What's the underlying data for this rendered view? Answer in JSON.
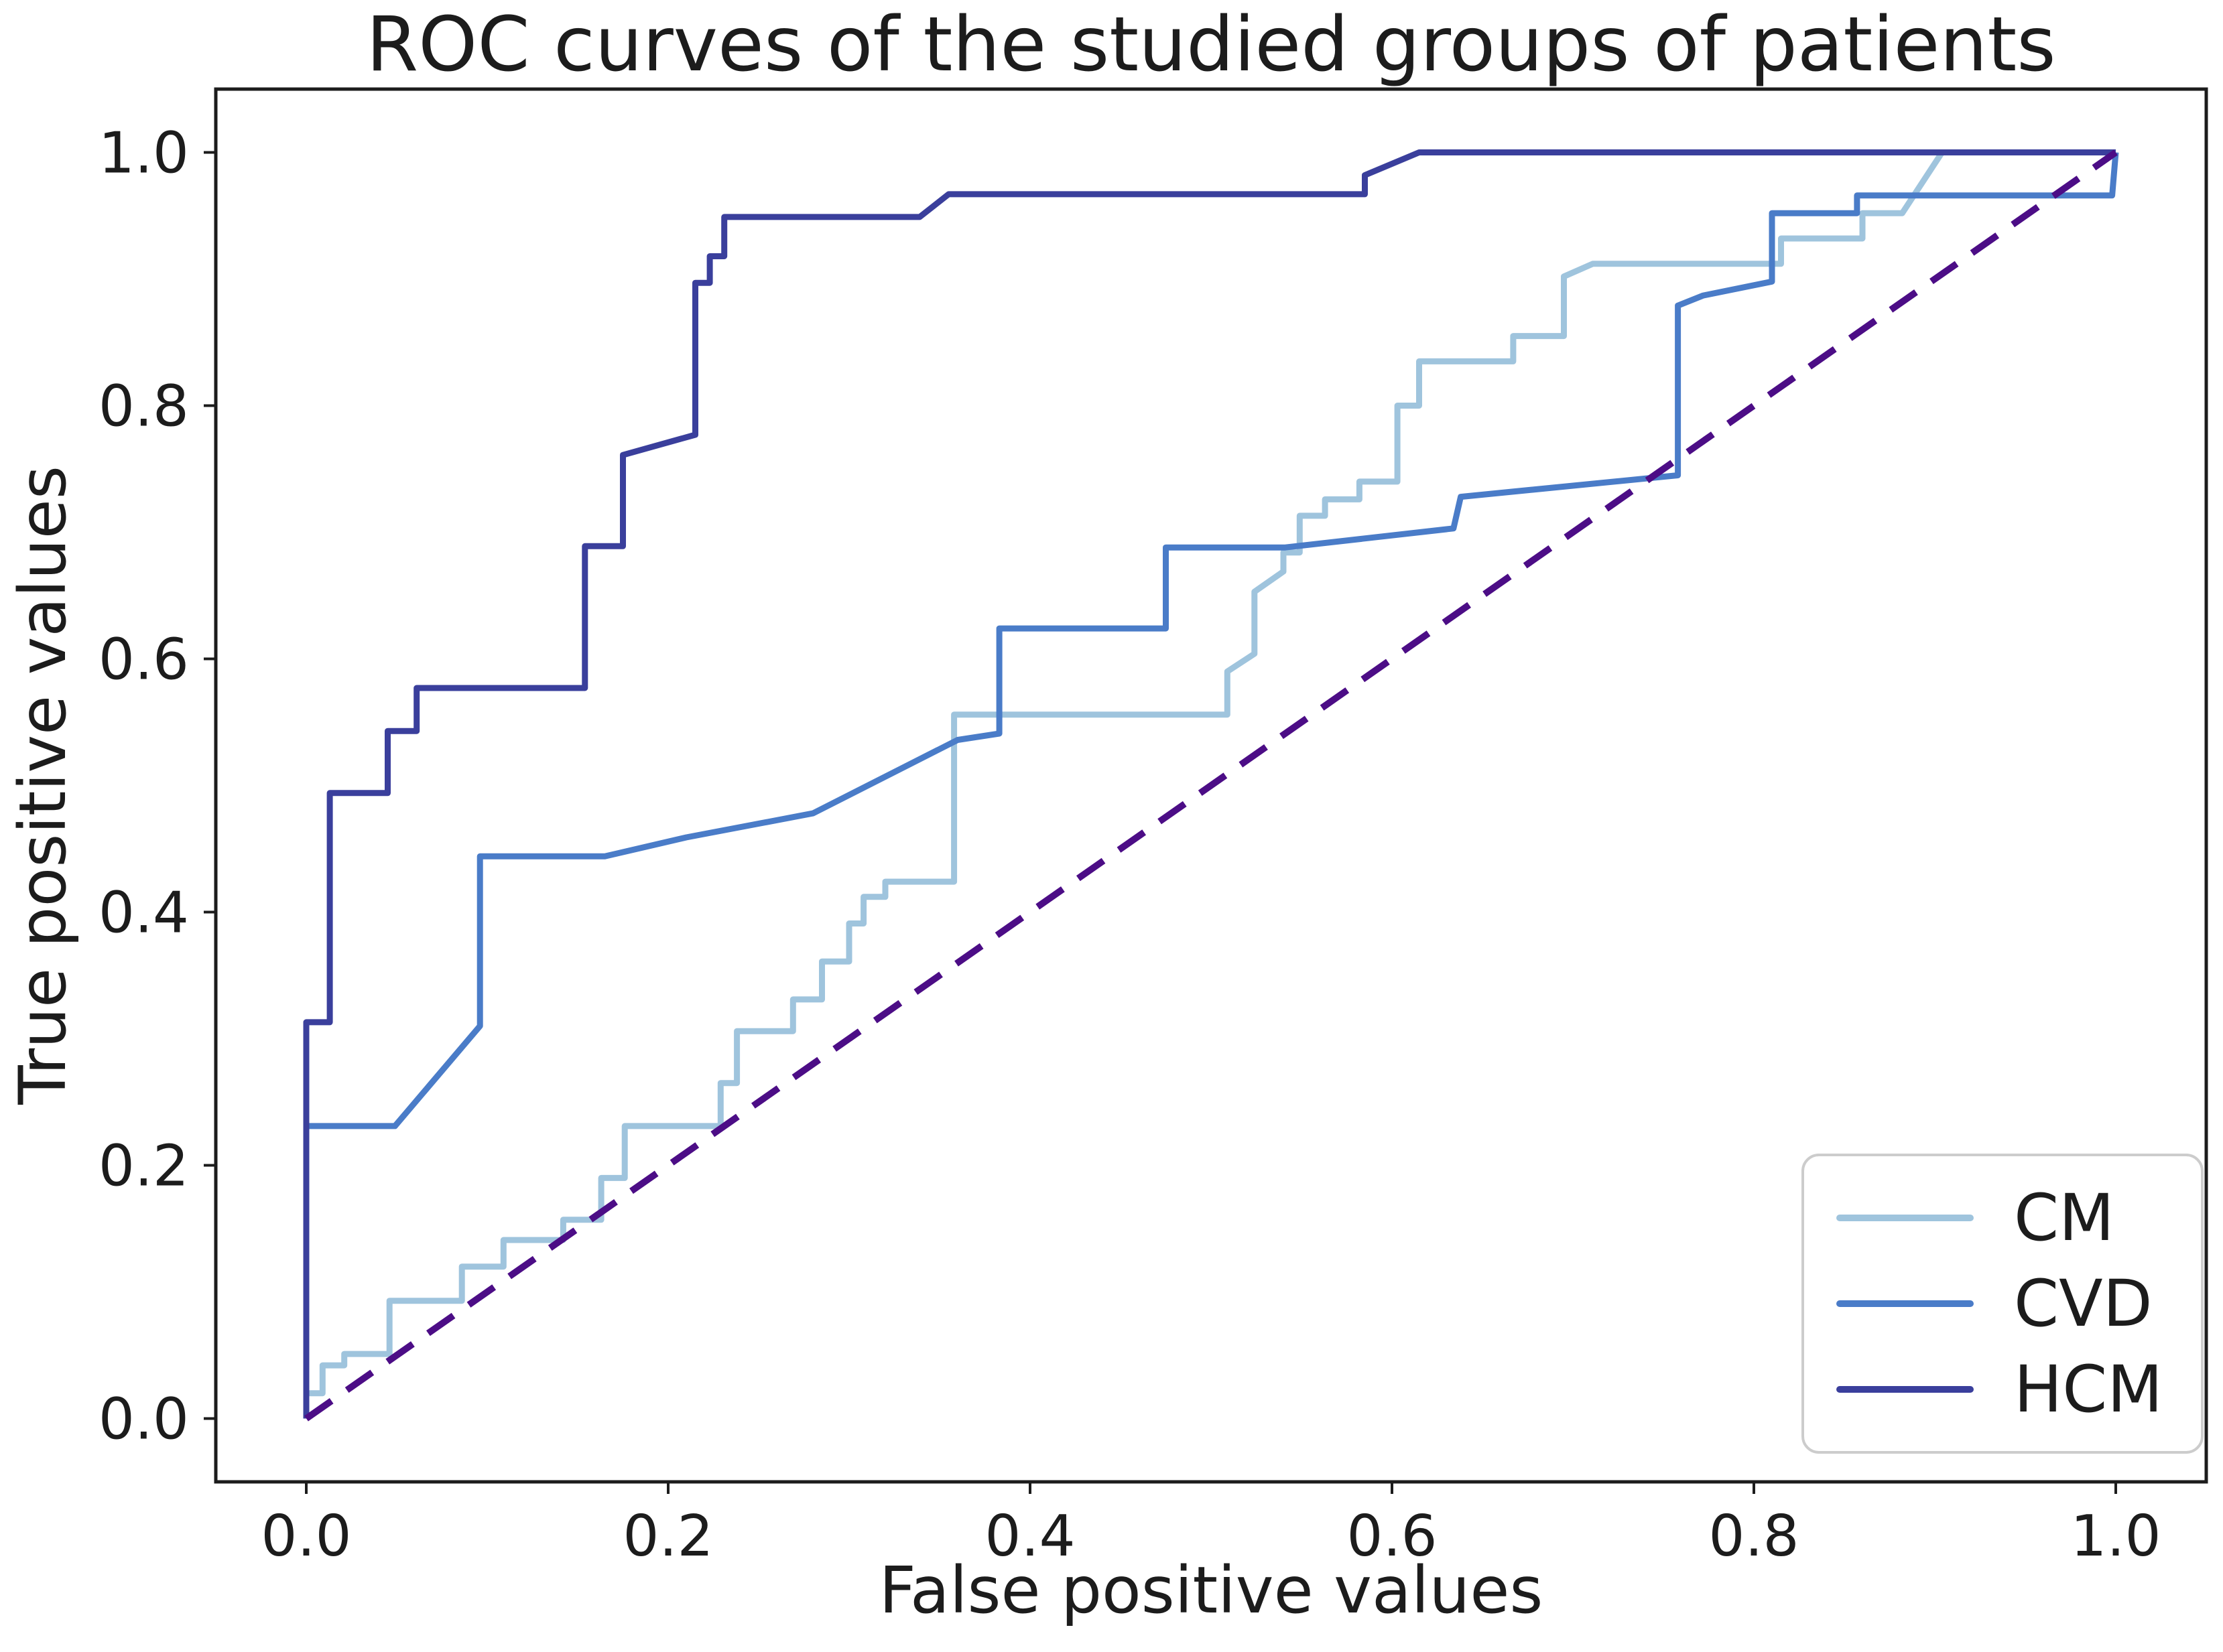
{
  "title": "ROC curves of the studied groups of patients",
  "axes": {
    "xlabel": "False positive values",
    "ylabel": "True positive values",
    "xlim": [
      -0.05,
      1.05
    ],
    "ylim": [
      -0.05,
      1.05
    ],
    "x_tick_values": [
      0.0,
      0.2,
      0.4,
      0.6,
      0.8,
      1.0
    ],
    "x_tick_labels": [
      "0.0",
      "0.2",
      "0.4",
      "0.6",
      "0.8",
      "1.0"
    ],
    "y_tick_values": [
      0.0,
      0.2,
      0.4,
      0.6,
      0.8,
      1.0
    ],
    "y_tick_labels": [
      "0.0",
      "0.2",
      "0.4",
      "0.6",
      "0.8",
      "1.0"
    ],
    "grid": false,
    "spine_color": "#1c1c1c",
    "tick_label_size": 85
  },
  "legend": {
    "position": "lower right",
    "border_color": "#cccccc",
    "entries": [
      {
        "label": "CM",
        "color": "#9fc4dd"
      },
      {
        "label": "CVD",
        "color": "#4a7cc8"
      },
      {
        "label": "HCM",
        "color": "#3a3f9c"
      }
    ]
  },
  "chart_data": {
    "type": "line",
    "title": "ROC curves of the studied groups of patients",
    "xlabel": "False positive values",
    "ylabel": "True positive values",
    "xlim": [
      -0.05,
      1.05
    ],
    "ylim": [
      -0.05,
      1.05
    ],
    "legend_position": "lower right",
    "series": [
      {
        "name": "CM",
        "color": "#9fc4dd",
        "line_width": 9,
        "points": [
          [
            0,
            0
          ],
          [
            0,
            0.02
          ],
          [
            0.009,
            0.02
          ],
          [
            0.009,
            0.042
          ],
          [
            0.021,
            0.042
          ],
          [
            0.021,
            0.051
          ],
          [
            0.046,
            0.051
          ],
          [
            0.046,
            0.093
          ],
          [
            0.086,
            0.093
          ],
          [
            0.086,
            0.12
          ],
          [
            0.109,
            0.12
          ],
          [
            0.109,
            0.141
          ],
          [
            0.142,
            0.141
          ],
          [
            0.142,
            0.157
          ],
          [
            0.163,
            0.157
          ],
          [
            0.163,
            0.19
          ],
          [
            0.176,
            0.19
          ],
          [
            0.176,
            0.231
          ],
          [
            0.229,
            0.231
          ],
          [
            0.229,
            0.265
          ],
          [
            0.238,
            0.265
          ],
          [
            0.238,
            0.306
          ],
          [
            0.269,
            0.306
          ],
          [
            0.269,
            0.331
          ],
          [
            0.285,
            0.331
          ],
          [
            0.285,
            0.361
          ],
          [
            0.3,
            0.361
          ],
          [
            0.3,
            0.391
          ],
          [
            0.308,
            0.391
          ],
          [
            0.308,
            0.412
          ],
          [
            0.32,
            0.412
          ],
          [
            0.32,
            0.424
          ],
          [
            0.358,
            0.424
          ],
          [
            0.358,
            0.556
          ],
          [
            0.509,
            0.556
          ],
          [
            0.509,
            0.59
          ],
          [
            0.524,
            0.604
          ],
          [
            0.524,
            0.653
          ],
          [
            0.54,
            0.669
          ],
          [
            0.54,
            0.684
          ],
          [
            0.549,
            0.684
          ],
          [
            0.549,
            0.713
          ],
          [
            0.563,
            0.713
          ],
          [
            0.563,
            0.726
          ],
          [
            0.582,
            0.726
          ],
          [
            0.582,
            0.74
          ],
          [
            0.603,
            0.74
          ],
          [
            0.603,
            0.8
          ],
          [
            0.615,
            0.8
          ],
          [
            0.615,
            0.835
          ],
          [
            0.667,
            0.835
          ],
          [
            0.667,
            0.855
          ],
          [
            0.695,
            0.855
          ],
          [
            0.695,
            0.902
          ],
          [
            0.711,
            0.912
          ],
          [
            0.815,
            0.912
          ],
          [
            0.815,
            0.932
          ],
          [
            0.86,
            0.932
          ],
          [
            0.86,
            0.952
          ],
          [
            0.882,
            0.952
          ],
          [
            0.904,
            1.0
          ],
          [
            1.0,
            1.0
          ]
        ]
      },
      {
        "name": "CVD",
        "color": "#4a7cc8",
        "line_width": 9,
        "points": [
          [
            0,
            0
          ],
          [
            0,
            0.231
          ],
          [
            0.049,
            0.231
          ],
          [
            0.096,
            0.31
          ],
          [
            0.096,
            0.444
          ],
          [
            0.165,
            0.444
          ],
          [
            0.21,
            0.459
          ],
          [
            0.28,
            0.478
          ],
          [
            0.36,
            0.536
          ],
          [
            0.383,
            0.541
          ],
          [
            0.383,
            0.624
          ],
          [
            0.475,
            0.624
          ],
          [
            0.475,
            0.688
          ],
          [
            0.541,
            0.688
          ],
          [
            0.634,
            0.703
          ],
          [
            0.638,
            0.728
          ],
          [
            0.758,
            0.745
          ],
          [
            0.758,
            0.879
          ],
          [
            0.772,
            0.887
          ],
          [
            0.81,
            0.898
          ],
          [
            0.81,
            0.952
          ],
          [
            0.857,
            0.952
          ],
          [
            0.857,
            0.966
          ],
          [
            0.998,
            0.966
          ],
          [
            1.0,
            1.0
          ]
        ]
      },
      {
        "name": "HCM",
        "color": "#3a3f9c",
        "line_width": 9,
        "points": [
          [
            0,
            0
          ],
          [
            0,
            0.313
          ],
          [
            0.013,
            0.313
          ],
          [
            0.013,
            0.494
          ],
          [
            0.045,
            0.494
          ],
          [
            0.045,
            0.543
          ],
          [
            0.061,
            0.543
          ],
          [
            0.061,
            0.577
          ],
          [
            0.154,
            0.577
          ],
          [
            0.154,
            0.689
          ],
          [
            0.175,
            0.689
          ],
          [
            0.175,
            0.761
          ],
          [
            0.215,
            0.777
          ],
          [
            0.215,
            0.897
          ],
          [
            0.223,
            0.897
          ],
          [
            0.223,
            0.918
          ],
          [
            0.231,
            0.918
          ],
          [
            0.231,
            0.949
          ],
          [
            0.339,
            0.949
          ],
          [
            0.355,
            0.967
          ],
          [
            0.585,
            0.967
          ],
          [
            0.585,
            0.982
          ],
          [
            0.615,
            1.0
          ],
          [
            1.0,
            1.0
          ]
        ]
      }
    ],
    "reference_line": {
      "name": "chance diagonal",
      "style": "dashed",
      "color": "#4c0d86",
      "line_width": 10,
      "points": [
        [
          0,
          0
        ],
        [
          1,
          1
        ]
      ]
    }
  }
}
